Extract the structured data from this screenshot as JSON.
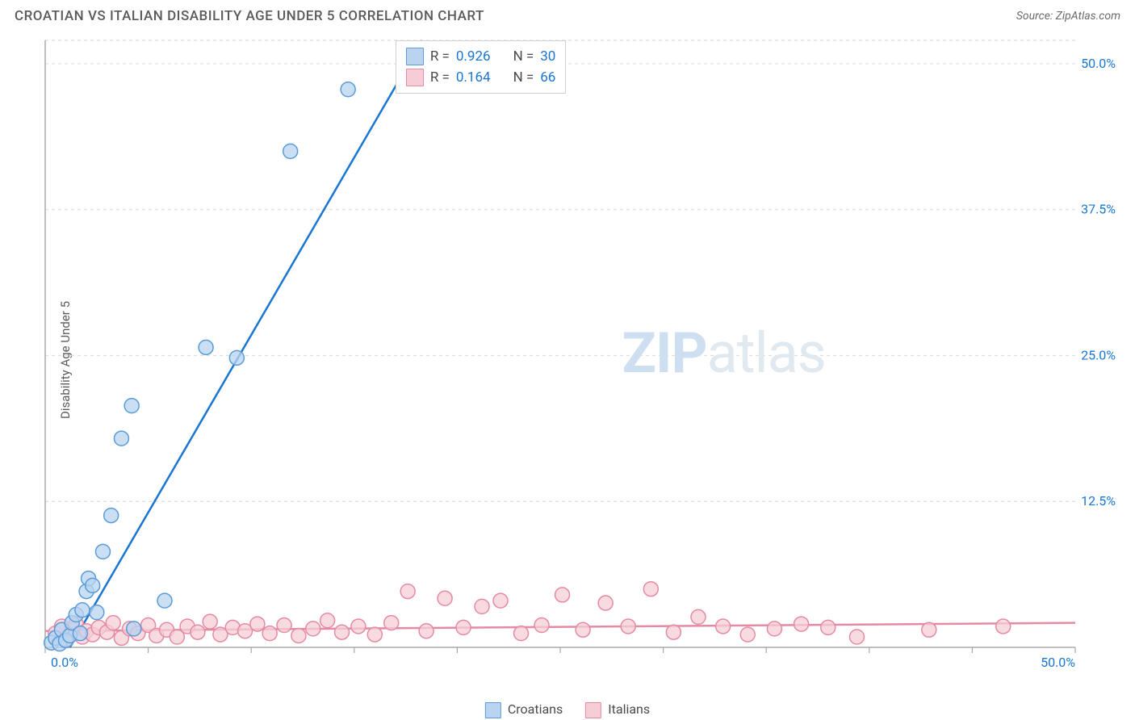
{
  "title": "CROATIAN VS ITALIAN DISABILITY AGE UNDER 5 CORRELATION CHART",
  "source_label": "Source: ZipAtlas.com",
  "y_axis_label": "Disability Age Under 5",
  "watermark": {
    "strong": "ZIP",
    "rest": "atlas"
  },
  "chart": {
    "type": "scatter",
    "xlim": [
      0,
      50
    ],
    "ylim": [
      0,
      52
    ],
    "x_ticks": [
      0,
      5,
      10,
      15,
      20,
      25,
      30,
      35,
      40,
      45,
      50
    ],
    "y_ticks": [
      12.5,
      25.0,
      37.5,
      50.0
    ],
    "y_tick_labels": [
      "12.5%",
      "25.0%",
      "37.5%",
      "50.0%"
    ],
    "x_tick_labels_shown": {
      "first": "0.0%",
      "last": "50.0%"
    },
    "background_color": "#ffffff",
    "grid_color": "#dcdcdc",
    "grid_dash": "4 4",
    "axis_color": "#a8a8a8",
    "tick_label_color": "#1976d2",
    "tick_label_fontsize": 16,
    "marker_radius": 9,
    "marker_stroke_width": 1.5,
    "regression_line_width": 2.5,
    "series": [
      {
        "name": "Croatians",
        "fill": "#b8d4f0",
        "stroke": "#5a9bd8",
        "line_color": "#1976d2",
        "R": "0.926",
        "N": "30",
        "trend_line": {
          "x1": 1.2,
          "y1": 0,
          "x2": 18.3,
          "y2": 52
        },
        "points": [
          [
            0.3,
            0.4
          ],
          [
            0.5,
            0.8
          ],
          [
            0.7,
            0.3
          ],
          [
            0.8,
            1.5
          ],
          [
            1.0,
            0.6
          ],
          [
            1.2,
            1.0
          ],
          [
            1.3,
            2.1
          ],
          [
            1.5,
            2.8
          ],
          [
            1.7,
            1.2
          ],
          [
            1.8,
            3.2
          ],
          [
            2.0,
            4.8
          ],
          [
            2.1,
            5.9
          ],
          [
            2.3,
            5.3
          ],
          [
            2.5,
            3.0
          ],
          [
            2.8,
            8.2
          ],
          [
            3.2,
            11.3
          ],
          [
            3.7,
            17.9
          ],
          [
            4.2,
            20.7
          ],
          [
            4.3,
            1.6
          ],
          [
            5.8,
            4.0
          ],
          [
            7.8,
            25.7
          ],
          [
            9.3,
            24.8
          ],
          [
            11.9,
            42.5
          ],
          [
            14.7,
            47.8
          ]
        ]
      },
      {
        "name": "Italians",
        "fill": "#f6cdd7",
        "stroke": "#e58aa3",
        "line_color": "#e58aa3",
        "R": "0.164",
        "N": "66",
        "trend_line": {
          "x1": 0,
          "y1": 1.4,
          "x2": 50,
          "y2": 2.1
        },
        "points": [
          [
            0.5,
            1.2
          ],
          [
            0.8,
            1.8
          ],
          [
            1.0,
            0.7
          ],
          [
            1.3,
            1.5
          ],
          [
            1.5,
            2.0
          ],
          [
            1.8,
            0.9
          ],
          [
            2.0,
            1.4
          ],
          [
            2.3,
            1.1
          ],
          [
            2.6,
            1.7
          ],
          [
            3.0,
            1.3
          ],
          [
            3.3,
            2.1
          ],
          [
            3.7,
            0.8
          ],
          [
            4.1,
            1.6
          ],
          [
            4.5,
            1.2
          ],
          [
            5.0,
            1.9
          ],
          [
            5.4,
            1.0
          ],
          [
            5.9,
            1.5
          ],
          [
            6.4,
            0.9
          ],
          [
            6.9,
            1.8
          ],
          [
            7.4,
            1.3
          ],
          [
            8.0,
            2.2
          ],
          [
            8.5,
            1.1
          ],
          [
            9.1,
            1.7
          ],
          [
            9.7,
            1.4
          ],
          [
            10.3,
            2.0
          ],
          [
            10.9,
            1.2
          ],
          [
            11.6,
            1.9
          ],
          [
            12.3,
            1.0
          ],
          [
            13.0,
            1.6
          ],
          [
            13.7,
            2.3
          ],
          [
            14.4,
            1.3
          ],
          [
            15.2,
            1.8
          ],
          [
            16.0,
            1.1
          ],
          [
            16.8,
            2.1
          ],
          [
            17.6,
            4.8
          ],
          [
            18.5,
            1.4
          ],
          [
            19.4,
            4.2
          ],
          [
            20.3,
            1.7
          ],
          [
            21.2,
            3.5
          ],
          [
            22.1,
            4.0
          ],
          [
            23.1,
            1.2
          ],
          [
            24.1,
            1.9
          ],
          [
            25.1,
            4.5
          ],
          [
            26.1,
            1.5
          ],
          [
            27.2,
            3.8
          ],
          [
            28.3,
            1.8
          ],
          [
            29.4,
            5.0
          ],
          [
            30.5,
            1.3
          ],
          [
            31.7,
            2.6
          ],
          [
            32.9,
            1.8
          ],
          [
            34.1,
            1.1
          ],
          [
            35.4,
            1.6
          ],
          [
            36.7,
            2.0
          ],
          [
            38.0,
            1.7
          ],
          [
            39.4,
            0.9
          ],
          [
            42.9,
            1.5
          ],
          [
            46.5,
            1.8
          ]
        ]
      }
    ]
  },
  "legend_bottom": [
    {
      "label": "Croatians",
      "swatch_fill": "#b8d4f0",
      "swatch_stroke": "#5a9bd8"
    },
    {
      "label": "Italians",
      "swatch_fill": "#f6cdd7",
      "swatch_stroke": "#e58aa3"
    }
  ],
  "legend_stats_labels": {
    "R": "R =",
    "N": "N ="
  }
}
